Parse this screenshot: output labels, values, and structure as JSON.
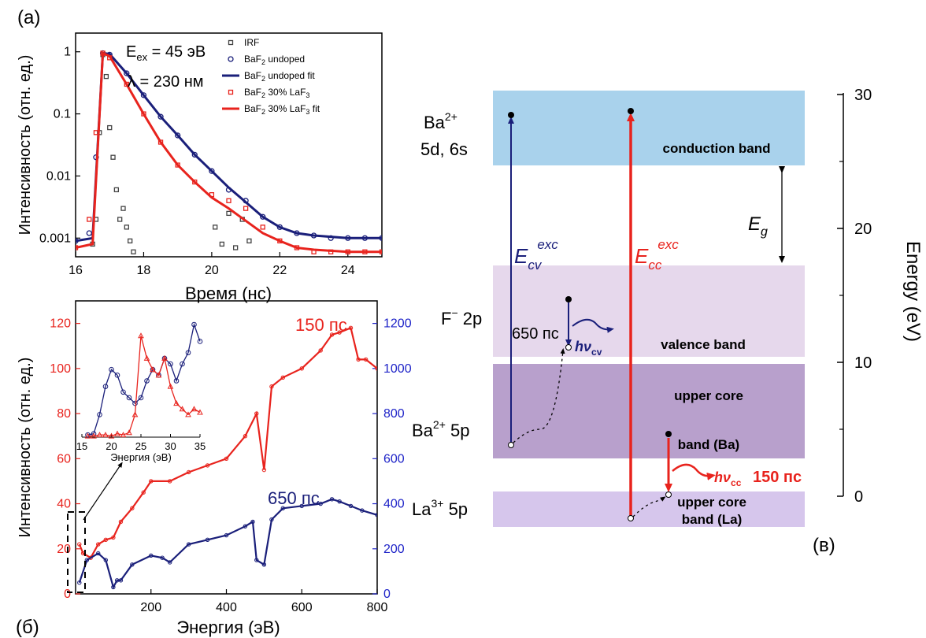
{
  "panel_labels": {
    "a": "(a)",
    "b": "(б)",
    "c": "(в)"
  },
  "colors": {
    "red": "#e8231d",
    "navy": "#1a1f7a",
    "blue_axis": "#1f24c8",
    "gray": "#444444",
    "conduction": "#a9d2ec",
    "valence": "#e6d8ec",
    "core_ba": "#b8a0cc",
    "core_la": "#d6c6ec"
  },
  "chart_data": [
    {
      "id": "a",
      "type": "scatter",
      "xlabel": "Время (нс)",
      "ylabel": "Интенсивность (отн. ед.)",
      "xlim": [
        16,
        25
      ],
      "ylim": [
        0.0005,
        2
      ],
      "yscale": "log",
      "xticks": [
        16,
        18,
        20,
        22,
        24
      ],
      "yticks": [
        0.001,
        0.01,
        0.1,
        1
      ],
      "ytick_labels": [
        "0.001",
        "0.01",
        "0.1",
        "1"
      ],
      "annotations": {
        "e_main": "E",
        "e_sub": "ex",
        "e_rest": " = 45 эВ",
        "lam": "λ = 230 нм"
      },
      "legend": [
        {
          "pre": "IRF",
          "sub": "",
          "post": "",
          "kind": "square",
          "color": "#444444"
        },
        {
          "pre": "BaF",
          "sub": "2",
          "post": " undoped",
          "kind": "circle",
          "color": "#1a1f7a"
        },
        {
          "pre": "BaF",
          "sub": "2",
          "post": " undoped fit",
          "kind": "line",
          "color": "#1a1f7a"
        },
        {
          "pre": "BaF",
          "sub": "2",
          "post": " 30% LaF",
          "sub2": "3",
          "kind": "square",
          "color": "#e8231d"
        },
        {
          "pre": "BaF",
          "sub": "2",
          "post": " 30% LaF",
          "sub2": "3",
          "post2": " fit",
          "kind": "line",
          "color": "#e8231d"
        }
      ],
      "series": [
        {
          "name": "IRF",
          "x": [
            16.5,
            16.6,
            16.7,
            16.8,
            16.9,
            17.0,
            17.1,
            17.2,
            17.3,
            17.4,
            17.5,
            17.6,
            17.7,
            20.1,
            20.3,
            20.5,
            20.7,
            20.9,
            21.1
          ],
          "y": [
            0.0008,
            0.002,
            0.05,
            0.9,
            0.4,
            0.06,
            0.02,
            0.006,
            0.002,
            0.003,
            0.0015,
            0.0009,
            0.0006,
            0.0015,
            0.0008,
            0.0025,
            0.0007,
            0.002,
            0.0009
          ]
        },
        {
          "name": "BaF2 undoped",
          "x": [
            16.0,
            16.4,
            16.6,
            16.8,
            17.0,
            17.5,
            18.0,
            18.5,
            19.0,
            19.5,
            20.0,
            20.5,
            21.0,
            21.5,
            22.0,
            22.5,
            23.0,
            23.5,
            24.0,
            24.5,
            25.0
          ],
          "y": [
            0.0009,
            0.0012,
            0.02,
            0.95,
            0.9,
            0.45,
            0.2,
            0.09,
            0.045,
            0.022,
            0.012,
            0.006,
            0.004,
            0.0022,
            0.0015,
            0.0012,
            0.0011,
            0.001,
            0.001,
            0.001,
            0.001
          ]
        },
        {
          "name": "BaF2 undoped fit",
          "x": [
            16.0,
            16.5,
            16.8,
            17.0,
            17.5,
            18.0,
            18.5,
            19.0,
            19.5,
            20.0,
            20.5,
            21.0,
            21.5,
            22.0,
            22.5,
            23.0,
            24.0,
            25.0
          ],
          "y": [
            0.0009,
            0.001,
            0.95,
            0.92,
            0.45,
            0.2,
            0.09,
            0.045,
            0.022,
            0.012,
            0.0065,
            0.0038,
            0.0022,
            0.0015,
            0.0012,
            0.0011,
            0.001,
            0.001
          ]
        },
        {
          "name": "BaF2 30% LaF3",
          "x": [
            16.0,
            16.4,
            16.6,
            16.8,
            17.0,
            17.5,
            18.0,
            18.5,
            19.0,
            19.5,
            20.0,
            20.5,
            21.0,
            21.5,
            22.0,
            22.5,
            23.0,
            23.5,
            24.0,
            24.5,
            25.0
          ],
          "y": [
            0.0007,
            0.002,
            0.05,
            0.95,
            0.8,
            0.3,
            0.1,
            0.035,
            0.015,
            0.008,
            0.005,
            0.004,
            0.003,
            0.0015,
            0.0009,
            0.0007,
            0.0006,
            0.0006,
            0.0006,
            0.0006,
            0.0006
          ]
        },
        {
          "name": "BaF2 30% LaF3 fit",
          "x": [
            16.0,
            16.5,
            16.8,
            17.0,
            17.5,
            18.0,
            18.5,
            19.0,
            19.5,
            20.0,
            20.5,
            21.0,
            21.5,
            22.0,
            22.5,
            23.0,
            24.0,
            25.0
          ],
          "y": [
            0.0007,
            0.0008,
            0.95,
            0.85,
            0.3,
            0.1,
            0.035,
            0.015,
            0.008,
            0.0045,
            0.003,
            0.0019,
            0.0012,
            0.0009,
            0.0007,
            0.00065,
            0.0006,
            0.0006
          ]
        }
      ]
    },
    {
      "id": "b",
      "type": "line",
      "xlabel": "Энергия (эВ)",
      "ylabel": "Интенсивность (отн. ед.)",
      "xlim": [
        0,
        800
      ],
      "xticks": [
        200,
        400,
        600,
        800
      ],
      "ylim_left": [
        0,
        130
      ],
      "yticks_left": [
        0,
        20,
        40,
        60,
        80,
        100,
        120
      ],
      "ylim_right": [
        0,
        1300
      ],
      "yticks_right": [
        0,
        200,
        400,
        600,
        800,
        1000,
        1200
      ],
      "series": [
        {
          "name": "150 пс",
          "axis": "left",
          "x": [
            10,
            20,
            40,
            60,
            80,
            100,
            120,
            150,
            180,
            200,
            250,
            300,
            350,
            400,
            450,
            480,
            500,
            520,
            550,
            600,
            650,
            680,
            700,
            730,
            750,
            770,
            800
          ],
          "y": [
            22,
            18,
            16,
            22,
            24,
            25,
            32,
            38,
            45,
            50,
            50,
            54,
            57,
            60,
            70,
            80,
            55,
            92,
            96,
            100,
            108,
            115,
            116,
            118,
            104,
            104,
            100
          ]
        },
        {
          "name": "650 пс",
          "axis": "right",
          "x": [
            10,
            30,
            60,
            80,
            100,
            110,
            120,
            150,
            200,
            230,
            250,
            300,
            350,
            400,
            450,
            470,
            480,
            500,
            520,
            550,
            600,
            650,
            680,
            700,
            730,
            760,
            800
          ],
          "y": [
            50,
            150,
            180,
            150,
            30,
            60,
            60,
            130,
            170,
            160,
            140,
            220,
            240,
            260,
            300,
            320,
            150,
            130,
            330,
            380,
            390,
            400,
            420,
            410,
            390,
            370,
            350
          ]
        }
      ],
      "series_labels": {
        "red": "150 пс",
        "blue": "650 пс"
      },
      "inset": {
        "xlabel": "Энергия (эВ)",
        "xlim": [
          15,
          35
        ],
        "xticks": [
          15,
          20,
          25,
          30,
          35
        ],
        "series": [
          {
            "name": "650 пс",
            "x": [
              16,
              17,
              18,
              19,
              20,
              21,
              22,
              23,
              24,
              25,
              26,
              27,
              28,
              29,
              30,
              31,
              32,
              33,
              34,
              35
            ],
            "y": [
              0.02,
              0.03,
              0.2,
              0.45,
              0.6,
              0.55,
              0.4,
              0.35,
              0.3,
              0.35,
              0.5,
              0.6,
              0.55,
              0.7,
              0.65,
              0.5,
              0.65,
              0.75,
              1.0,
              0.85
            ]
          },
          {
            "name": "150 пс",
            "x": [
              16,
              17,
              18,
              19,
              20,
              21,
              22,
              23,
              24,
              25,
              26,
              27,
              28,
              29,
              30,
              31,
              32,
              33,
              34,
              35
            ],
            "y": [
              0.01,
              0.01,
              0.02,
              0.02,
              0.01,
              0.03,
              0.02,
              0.04,
              0.2,
              0.9,
              0.7,
              0.6,
              0.55,
              0.7,
              0.45,
              0.3,
              0.25,
              0.2,
              0.25,
              0.22
            ]
          }
        ]
      }
    }
  ],
  "diagram": {
    "axis_label": "Energy (eV)",
    "axis_ticks": [
      "0",
      "10",
      "20",
      "30"
    ],
    "bands": {
      "conduction": "conduction band",
      "valence": "valence band",
      "core_ba_1": "upper core",
      "core_ba_2": "band (Ba)",
      "core_la_1": "upper core",
      "core_la_2": "band (La)"
    },
    "levels": {
      "ba_main": "Ba",
      "ba_sup": "2+",
      "ba_orb": "5d, 6s",
      "f_main": "F",
      "f_sup": "−",
      "f_orb": " 2p",
      "ba5p_main": "Ba",
      "ba5p_sup": "2+",
      "ba5p_orb": " 5p",
      "la_main": "La",
      "la_sup": "3+",
      "la_orb": " 5p"
    },
    "eg": {
      "main": "E",
      "sub": "g"
    },
    "ecv": {
      "main": "E",
      "sub": "cv",
      "sup": "exc"
    },
    "ecc": {
      "main": "E",
      "sub": "cc",
      "sup": "exc"
    },
    "hv_cv": {
      "main": "hν",
      "sub": "cv"
    },
    "hv_cc": {
      "main": "hν",
      "sub": "cc"
    },
    "time_cv": "650 пс",
    "time_cc": "150 пс"
  }
}
